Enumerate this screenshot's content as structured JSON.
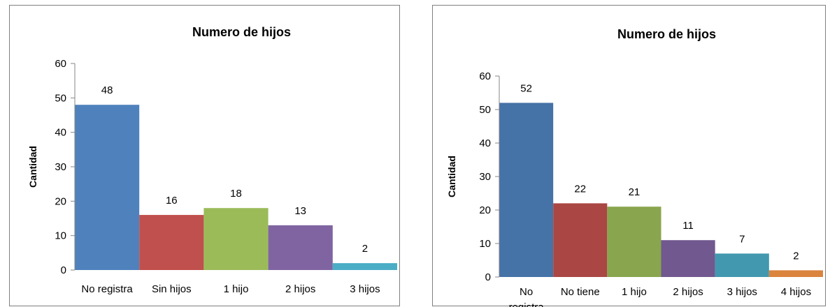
{
  "chart_data": [
    {
      "type": "bar",
      "title": "Numero de hijos",
      "ylabel": "Cantidad",
      "xlabel": "",
      "ylim": [
        0,
        60
      ],
      "yticks": [
        0,
        10,
        20,
        30,
        40,
        50,
        60
      ],
      "categories": [
        "No registra",
        "Sin hijos",
        "1 hijo",
        "2 hijos",
        "3 hijos"
      ],
      "values": [
        48,
        16,
        18,
        13,
        2
      ],
      "colors": [
        "#4f81bd",
        "#c0504d",
        "#9bbb59",
        "#8064a2",
        "#4bacc6"
      ],
      "grid": false,
      "legend": "none"
    },
    {
      "type": "bar",
      "title": "Numero de hijos",
      "ylabel": "Cantidad",
      "xlabel": "",
      "ylim": [
        0,
        60
      ],
      "yticks": [
        0,
        10,
        20,
        30,
        40,
        50,
        60
      ],
      "categories": [
        "No registra",
        "No tiene",
        "1 hijo",
        "2 hijos",
        "3 hijos",
        "4 hijos"
      ],
      "values": [
        52,
        22,
        21,
        11,
        7,
        2
      ],
      "colors": [
        "#4572a7",
        "#aa4643",
        "#89a54e",
        "#71588f",
        "#4198af",
        "#db843d"
      ],
      "grid": false,
      "legend": "none"
    }
  ]
}
